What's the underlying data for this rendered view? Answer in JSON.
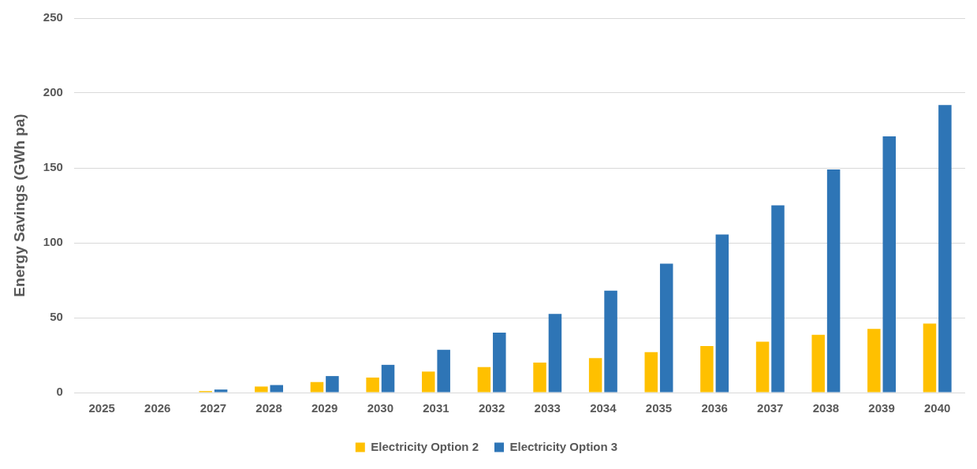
{
  "chart_data": {
    "type": "bar",
    "ylabel": "Energy Savings (GWh pa)",
    "categories": [
      "2025",
      "2026",
      "2027",
      "2028",
      "2029",
      "2030",
      "2031",
      "2032",
      "2033",
      "2034",
      "2035",
      "2036",
      "2037",
      "2038",
      "2039",
      "2040"
    ],
    "series": [
      {
        "name": "Electricity Option 2",
        "color": "#ffc000",
        "values": [
          0,
          0,
          1,
          4,
          7,
          10,
          14,
          17,
          20,
          23,
          27,
          31,
          34,
          38.5,
          42.5,
          46
        ]
      },
      {
        "name": "Electricity Option 3",
        "color": "#2e75b6",
        "values": [
          0,
          0,
          2,
          5,
          11,
          18.5,
          28.5,
          40,
          52.5,
          68,
          86,
          105.5,
          125,
          149,
          171,
          192
        ]
      }
    ],
    "ylim": [
      0,
      250
    ],
    "yticks": [
      0,
      50,
      100,
      150,
      200,
      250
    ],
    "grid": "y",
    "legend": "bottom"
  }
}
